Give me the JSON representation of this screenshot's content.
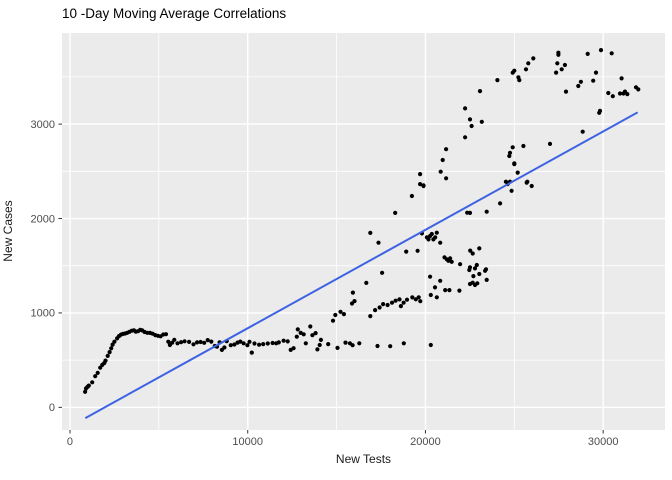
{
  "title": "10 -Day Moving Average Correlations",
  "colors": {
    "panel_background": "#EBEBEB",
    "grid": "#FFFFFF",
    "points": "#000000",
    "trend_line": "#3D63E3",
    "tick_text": "#4D4D4D",
    "tick_mark": "#333333",
    "axis_title": "#1A1A1A",
    "title_text": "#000000",
    "page_background": "#FFFFFF"
  },
  "chart_data": {
    "type": "scatter",
    "title": "10 -Day Moving Average Correlations",
    "xlabel": "New Tests",
    "ylabel": "New Cases",
    "grid": true,
    "legend": "none",
    "xlim": [
      -450,
      33480
    ],
    "ylim": [
      -240,
      3965
    ],
    "x_ticks": {
      "values": [
        0,
        10000,
        20000,
        30000
      ],
      "labels": [
        "0",
        "10000",
        "20000",
        "30000"
      ]
    },
    "y_ticks": {
      "values": [
        0,
        1000,
        2000,
        3000
      ],
      "labels": [
        "0",
        "1000",
        "2000",
        "3000"
      ]
    },
    "x_minor": [
      5000,
      15000,
      25000
    ],
    "y_minor": [
      500,
      1500,
      2500,
      3500
    ],
    "trend_line": {
      "type": "linear",
      "x1": 900,
      "y1": -110,
      "x2": 31900,
      "y2": 3120
    },
    "points": [
      [
        850,
        165
      ],
      [
        900,
        200
      ],
      [
        980,
        215
      ],
      [
        1060,
        230
      ],
      [
        1250,
        265
      ],
      [
        1420,
        330
      ],
      [
        1560,
        365
      ],
      [
        1700,
        420
      ],
      [
        1820,
        450
      ],
      [
        1930,
        470
      ],
      [
        2000,
        495
      ],
      [
        2120,
        545
      ],
      [
        2230,
        585
      ],
      [
        2320,
        625
      ],
      [
        2400,
        665
      ],
      [
        2500,
        695
      ],
      [
        2650,
        730
      ],
      [
        2760,
        755
      ],
      [
        2870,
        770
      ],
      [
        2980,
        778
      ],
      [
        3100,
        782
      ],
      [
        3220,
        790
      ],
      [
        3350,
        800
      ],
      [
        3480,
        812
      ],
      [
        3600,
        815
      ],
      [
        3700,
        802
      ],
      [
        3830,
        806
      ],
      [
        3950,
        820
      ],
      [
        4060,
        815
      ],
      [
        4200,
        798
      ],
      [
        4350,
        790
      ],
      [
        4500,
        788
      ],
      [
        4650,
        780
      ],
      [
        4800,
        765
      ],
      [
        4950,
        758
      ],
      [
        5100,
        752
      ],
      [
        5250,
        772
      ],
      [
        5400,
        775
      ],
      [
        5530,
        695
      ],
      [
        5620,
        660
      ],
      [
        5750,
        685
      ],
      [
        5870,
        715
      ],
      [
        6050,
        678
      ],
      [
        6250,
        690
      ],
      [
        6450,
        700
      ],
      [
        6700,
        693
      ],
      [
        6950,
        668
      ],
      [
        7150,
        688
      ],
      [
        7350,
        692
      ],
      [
        7550,
        684
      ],
      [
        7750,
        712
      ],
      [
        7950,
        696
      ],
      [
        8150,
        650
      ],
      [
        8270,
        643
      ],
      [
        8420,
        688
      ],
      [
        8550,
        608
      ],
      [
        8690,
        634
      ],
      [
        8820,
        702
      ],
      [
        9050,
        658
      ],
      [
        9250,
        666
      ],
      [
        9430,
        686
      ],
      [
        9580,
        696
      ],
      [
        9770,
        678
      ],
      [
        9980,
        658
      ],
      [
        10100,
        694
      ],
      [
        10230,
        580
      ],
      [
        10380,
        676
      ],
      [
        10640,
        664
      ],
      [
        10870,
        670
      ],
      [
        11130,
        676
      ],
      [
        11400,
        682
      ],
      [
        11600,
        678
      ],
      [
        11750,
        688
      ],
      [
        12020,
        706
      ],
      [
        12250,
        698
      ],
      [
        12420,
        608
      ],
      [
        12580,
        626
      ],
      [
        12760,
        748
      ],
      [
        12820,
        826
      ],
      [
        12980,
        788
      ],
      [
        13150,
        774
      ],
      [
        13270,
        678
      ],
      [
        13520,
        856
      ],
      [
        13640,
        764
      ],
      [
        13820,
        786
      ],
      [
        13920,
        614
      ],
      [
        14050,
        660
      ],
      [
        14120,
        714
      ],
      [
        14530,
        670
      ],
      [
        15050,
        630
      ],
      [
        15500,
        686
      ],
      [
        15750,
        678
      ],
      [
        15900,
        658
      ],
      [
        16280,
        678
      ],
      [
        17300,
        650
      ],
      [
        18020,
        648
      ],
      [
        18780,
        678
      ],
      [
        20300,
        660
      ],
      [
        14800,
        918
      ],
      [
        14930,
        978
      ],
      [
        15220,
        1012
      ],
      [
        15410,
        988
      ],
      [
        15870,
        1100
      ],
      [
        15920,
        1215
      ],
      [
        16010,
        1125
      ],
      [
        16670,
        1318
      ],
      [
        16900,
        966
      ],
      [
        17170,
        1030
      ],
      [
        17420,
        1058
      ],
      [
        17560,
        1425
      ],
      [
        17620,
        1094
      ],
      [
        17870,
        1084
      ],
      [
        18120,
        1108
      ],
      [
        18320,
        1130
      ],
      [
        18540,
        1143
      ],
      [
        18620,
        1072
      ],
      [
        18770,
        1108
      ],
      [
        18960,
        1140
      ],
      [
        19260,
        1164
      ],
      [
        19460,
        1144
      ],
      [
        19620,
        1166
      ],
      [
        19710,
        1124
      ],
      [
        16900,
        1848
      ],
      [
        17360,
        1744
      ],
      [
        18300,
        2060
      ],
      [
        19240,
        2238
      ],
      [
        19700,
        2470
      ],
      [
        19700,
        2365
      ],
      [
        19890,
        2352
      ],
      [
        19890,
        2344
      ],
      [
        18920,
        1650
      ],
      [
        19560,
        1658
      ],
      [
        19800,
        1842
      ],
      [
        20080,
        1800
      ],
      [
        20170,
        1779
      ],
      [
        20260,
        1815
      ],
      [
        20360,
        1836
      ],
      [
        20450,
        1779
      ],
      [
        20550,
        1800
      ],
      [
        20640,
        1850
      ],
      [
        20830,
        1744
      ],
      [
        21070,
        1588
      ],
      [
        21200,
        1568
      ],
      [
        21290,
        1552
      ],
      [
        21390,
        1578
      ],
      [
        21480,
        1542
      ],
      [
        21950,
        1516
      ],
      [
        22470,
        1455
      ],
      [
        22700,
        1390
      ],
      [
        22890,
        1508
      ],
      [
        23030,
        1412
      ],
      [
        20260,
        1384
      ],
      [
        20540,
        1270
      ],
      [
        20830,
        1340
      ],
      [
        21110,
        1242
      ],
      [
        20300,
        1190
      ],
      [
        20640,
        1166
      ],
      [
        21350,
        1242
      ],
      [
        21910,
        1236
      ],
      [
        22510,
        1306
      ],
      [
        22790,
        1296
      ],
      [
        23360,
        1446
      ],
      [
        23450,
        1350
      ],
      [
        23030,
        1684
      ],
      [
        22520,
        1660
      ],
      [
        22660,
        1630
      ],
      [
        22510,
        1482
      ],
      [
        22790,
        1472
      ],
      [
        23410,
        1462
      ],
      [
        22660,
        1320
      ],
      [
        22920,
        1314
      ],
      [
        20860,
        2496
      ],
      [
        20970,
        2620
      ],
      [
        21160,
        2734
      ],
      [
        21160,
        2426
      ],
      [
        22350,
        2062
      ],
      [
        22510,
        2060
      ],
      [
        23450,
        2072
      ],
      [
        24200,
        2160
      ],
      [
        24630,
        2366
      ],
      [
        24760,
        2390
      ],
      [
        24850,
        2294
      ],
      [
        24530,
        2390
      ],
      [
        22230,
        3166
      ],
      [
        22230,
        2860
      ],
      [
        22510,
        3050
      ],
      [
        22600,
        2980
      ],
      [
        23070,
        3350
      ],
      [
        23170,
        3024
      ],
      [
        24050,
        3466
      ],
      [
        24760,
        2696
      ],
      [
        25000,
        2584
      ],
      [
        25190,
        2486
      ],
      [
        25730,
        2390
      ],
      [
        25980,
        2344
      ],
      [
        24910,
        2754
      ],
      [
        24720,
        2662
      ],
      [
        25510,
        2768
      ],
      [
        25000,
        2576
      ],
      [
        25700,
        2380
      ],
      [
        24910,
        3544
      ],
      [
        25000,
        3566
      ],
      [
        25230,
        3496
      ],
      [
        25280,
        3466
      ],
      [
        25660,
        3580
      ],
      [
        25790,
        3644
      ],
      [
        26070,
        3696
      ],
      [
        27010,
        2790
      ],
      [
        27350,
        3546
      ],
      [
        27420,
        3644
      ],
      [
        27480,
        3756
      ],
      [
        27480,
        3734
      ],
      [
        27670,
        3580
      ],
      [
        27850,
        3626
      ],
      [
        27910,
        3344
      ],
      [
        28600,
        3404
      ],
      [
        28750,
        3448
      ],
      [
        28850,
        2920
      ],
      [
        29130,
        3744
      ],
      [
        29440,
        3460
      ],
      [
        29600,
        3546
      ],
      [
        29780,
        3120
      ],
      [
        29820,
        3140
      ],
      [
        29880,
        3784
      ],
      [
        30290,
        3330
      ],
      [
        30480,
        3750
      ],
      [
        30540,
        3296
      ],
      [
        30950,
        3324
      ],
      [
        31040,
        3484
      ],
      [
        31140,
        3324
      ],
      [
        31230,
        3344
      ],
      [
        31360,
        3318
      ],
      [
        31850,
        3390
      ],
      [
        31980,
        3368
      ]
    ]
  }
}
